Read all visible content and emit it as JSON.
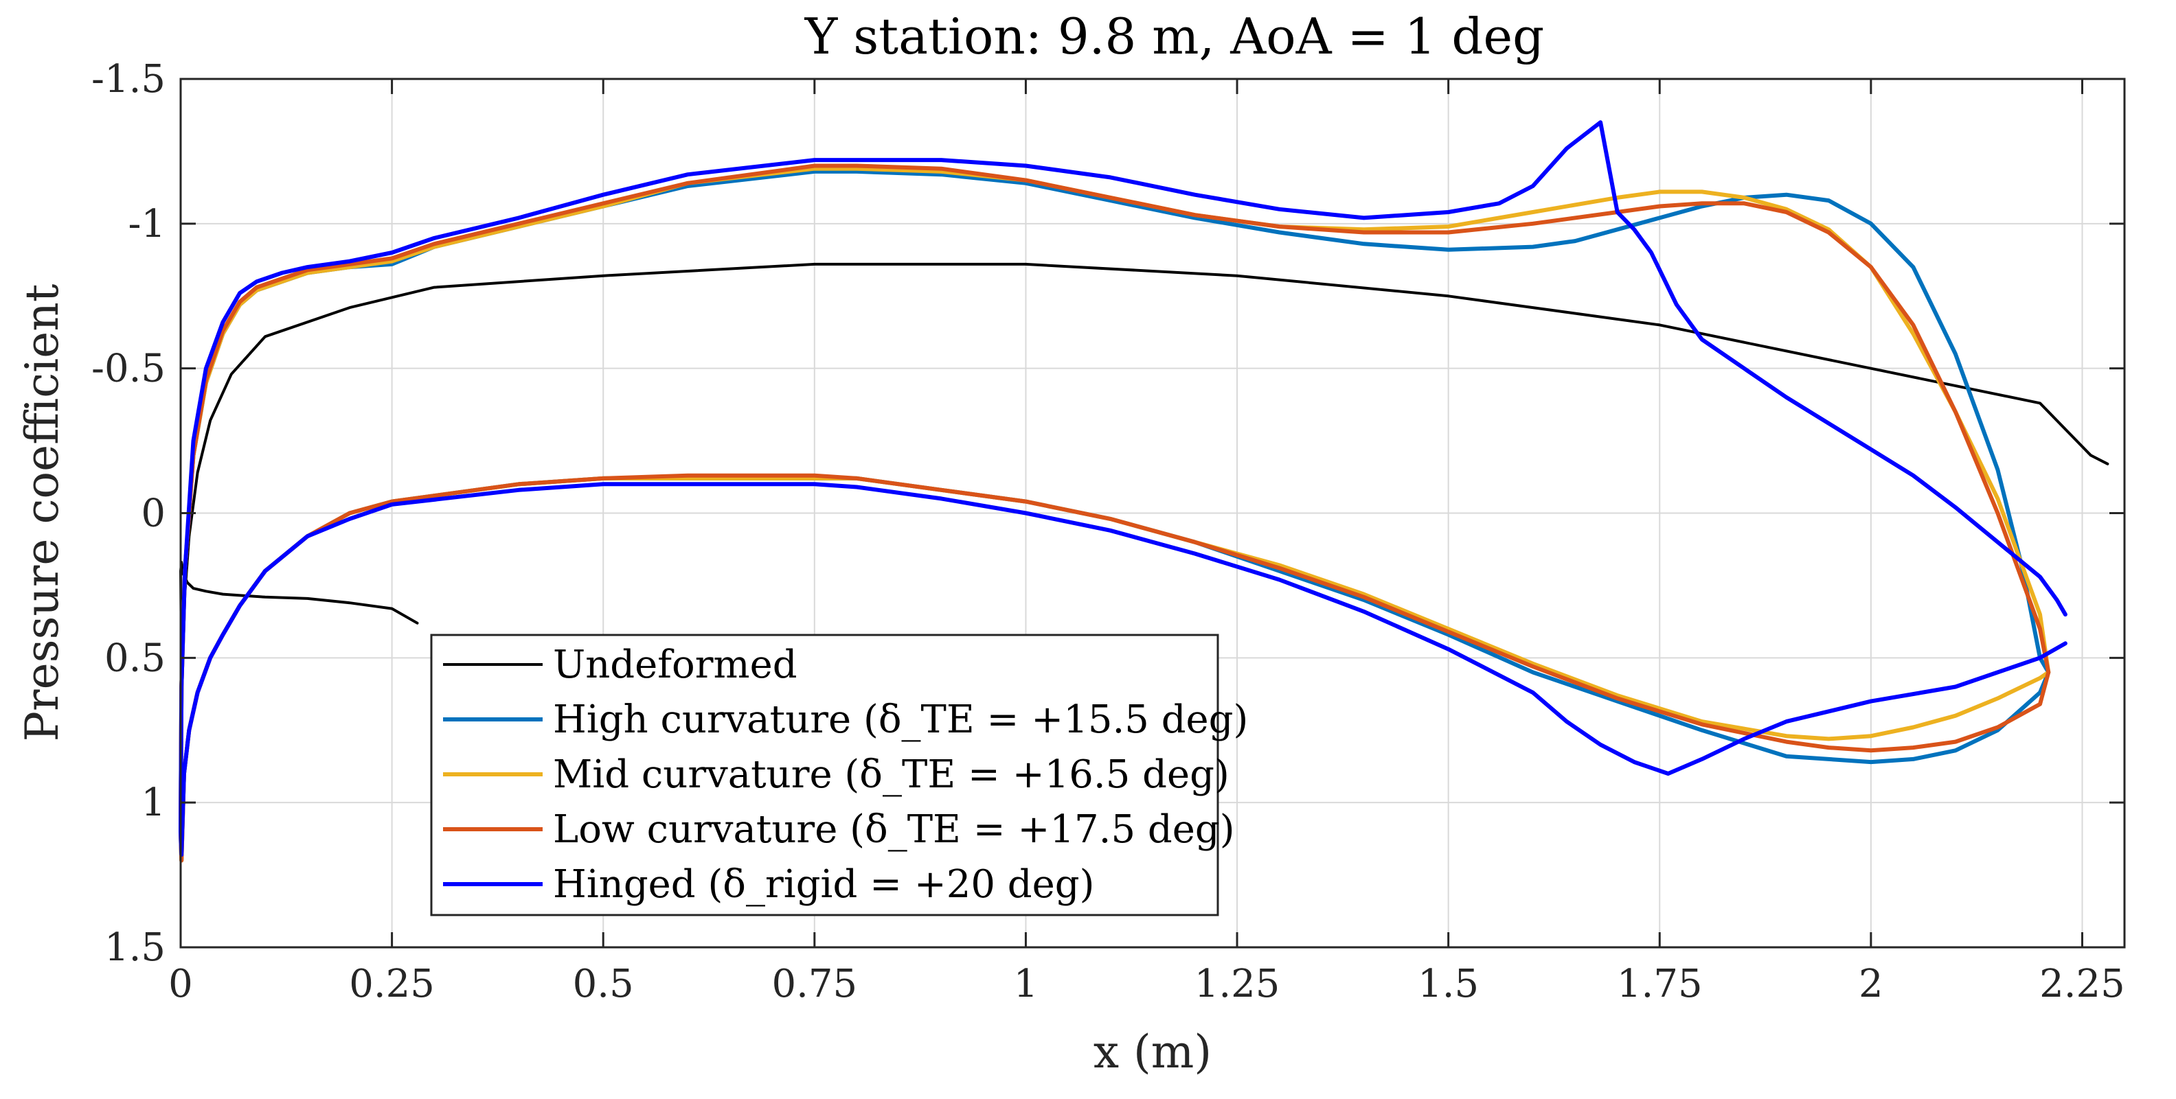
{
  "chart_data": {
    "type": "line",
    "title": "Y station: 9.8 m, AoA = 1 deg",
    "xlabel": "x (m)",
    "ylabel": "Pressure coefficient",
    "xlim": [
      0,
      2.3
    ],
    "ylim": [
      -1.5,
      1.5
    ],
    "y_reversed": true,
    "grid": true,
    "legend_position": "bottom-left",
    "x_ticks": [
      0,
      0.25,
      0.5,
      0.75,
      1,
      1.25,
      1.5,
      1.75,
      2,
      2.25
    ],
    "x_tick_labels": [
      "0",
      "0.25",
      "0.5",
      "0.75",
      "1",
      "1.25",
      "1.5",
      "1.75",
      "2",
      "2.25"
    ],
    "y_ticks": [
      -1.5,
      -1,
      -0.5,
      0,
      0.5,
      1,
      1.5
    ],
    "y_tick_labels": [
      "-1.5",
      "-1",
      "-0.5",
      "0",
      "0.5",
      "1",
      "1.5"
    ],
    "series": [
      {
        "name": "Undeformed",
        "legend_main": "Undeformed",
        "legend_math": "",
        "color": "#000000",
        "x": [
          0.28,
          0.25,
          0.2,
          0.15,
          0.1,
          0.075,
          0.05,
          0.03,
          0.015,
          0.008,
          0.003,
          0.001,
          0.0,
          0.001,
          0.004,
          0.01,
          0.02,
          0.035,
          0.06,
          0.1,
          0.2,
          0.3,
          0.5,
          0.75,
          1.0,
          1.25,
          1.5,
          1.75,
          2.0,
          2.2,
          2.26,
          2.28
        ],
        "y": [
          0.38,
          0.33,
          0.31,
          0.295,
          0.29,
          0.285,
          0.28,
          0.27,
          0.26,
          0.24,
          0.21,
          0.17,
          0.2,
          0.55,
          0.32,
          0.08,
          -0.14,
          -0.32,
          -0.48,
          -0.61,
          -0.71,
          -0.78,
          -0.82,
          -0.86,
          -0.86,
          -0.82,
          -0.75,
          -0.65,
          -0.5,
          -0.38,
          -0.2,
          -0.17
        ]
      },
      {
        "name": "High curvature",
        "legend_main": "High curvature",
        "legend_math": "(δ_TE = +15.5 deg)",
        "color": "#0072BD",
        "x": [
          2.21,
          2.2,
          2.18,
          2.15,
          2.1,
          2.05,
          2.0,
          1.95,
          1.9,
          1.85,
          1.8,
          1.75,
          1.7,
          1.65,
          1.6,
          1.5,
          1.4,
          1.3,
          1.2,
          1.1,
          1.0,
          0.9,
          0.8,
          0.75,
          0.6,
          0.5,
          0.4,
          0.3,
          0.25,
          0.2,
          0.15,
          0.12,
          0.09,
          0.07,
          0.05,
          0.03,
          0.015,
          0.005,
          0.001,
          0.0,
          0.001,
          0.004,
          0.01,
          0.02,
          0.035,
          0.05,
          0.07,
          0.1,
          0.15,
          0.2,
          0.25,
          0.4,
          0.5,
          0.6,
          0.75,
          0.8,
          0.9,
          1.0,
          1.1,
          1.2,
          1.3,
          1.4,
          1.5,
          1.6,
          1.7,
          1.8,
          1.9,
          2.0,
          2.05,
          2.1,
          2.15,
          2.2,
          2.21
        ],
        "y": [
          0.55,
          0.5,
          0.2,
          -0.15,
          -0.55,
          -0.85,
          -1.0,
          -1.08,
          -1.1,
          -1.09,
          -1.06,
          -1.02,
          -0.98,
          -0.94,
          -0.92,
          -0.91,
          -0.93,
          -0.97,
          -1.02,
          -1.08,
          -1.14,
          -1.17,
          -1.18,
          -1.18,
          -1.13,
          -1.06,
          -0.99,
          -0.92,
          -0.86,
          -0.85,
          -0.83,
          -0.8,
          -0.77,
          -0.72,
          -0.62,
          -0.45,
          -0.2,
          0.2,
          0.6,
          1.1,
          1.2,
          0.9,
          0.75,
          0.62,
          0.5,
          0.42,
          0.32,
          0.2,
          0.08,
          0.0,
          -0.04,
          -0.1,
          -0.12,
          -0.12,
          -0.12,
          -0.12,
          -0.08,
          -0.04,
          0.02,
          0.1,
          0.2,
          0.3,
          0.42,
          0.55,
          0.65,
          0.75,
          0.84,
          0.86,
          0.85,
          0.82,
          0.75,
          0.62,
          0.55
        ]
      },
      {
        "name": "Mid curvature",
        "legend_main": "Mid curvature",
        "legend_math": "(δ_TE = +16.5 deg)",
        "color": "#EDB120",
        "x": [
          2.21,
          2.2,
          2.15,
          2.1,
          2.05,
          2.0,
          1.95,
          1.9,
          1.85,
          1.8,
          1.75,
          1.7,
          1.6,
          1.5,
          1.4,
          1.3,
          1.2,
          1.1,
          1.0,
          0.9,
          0.8,
          0.75,
          0.6,
          0.5,
          0.4,
          0.3,
          0.25,
          0.2,
          0.15,
          0.12,
          0.09,
          0.07,
          0.05,
          0.03,
          0.015,
          0.005,
          0.001,
          0.0,
          0.001,
          0.004,
          0.01,
          0.02,
          0.035,
          0.05,
          0.07,
          0.1,
          0.15,
          0.2,
          0.25,
          0.4,
          0.5,
          0.6,
          0.75,
          0.8,
          0.9,
          1.0,
          1.1,
          1.2,
          1.3,
          1.4,
          1.5,
          1.6,
          1.7,
          1.8,
          1.9,
          1.95,
          2.0,
          2.05,
          2.1,
          2.15,
          2.2,
          2.21
        ],
        "y": [
          0.55,
          0.35,
          -0.05,
          -0.35,
          -0.62,
          -0.85,
          -0.98,
          -1.05,
          -1.09,
          -1.11,
          -1.11,
          -1.09,
          -1.04,
          -0.99,
          -0.98,
          -0.99,
          -1.03,
          -1.09,
          -1.15,
          -1.18,
          -1.19,
          -1.19,
          -1.14,
          -1.06,
          -0.99,
          -0.92,
          -0.87,
          -0.85,
          -0.83,
          -0.8,
          -0.77,
          -0.72,
          -0.62,
          -0.45,
          -0.2,
          0.2,
          0.6,
          1.1,
          1.2,
          0.9,
          0.75,
          0.62,
          0.5,
          0.42,
          0.32,
          0.2,
          0.08,
          0.0,
          -0.04,
          -0.1,
          -0.12,
          -0.12,
          -0.12,
          -0.12,
          -0.08,
          -0.04,
          0.02,
          0.1,
          0.18,
          0.28,
          0.4,
          0.52,
          0.63,
          0.72,
          0.77,
          0.78,
          0.77,
          0.74,
          0.7,
          0.64,
          0.57,
          0.55
        ]
      },
      {
        "name": "Low curvature",
        "legend_main": "Low curvature",
        "legend_math": "(δ_TE = +17.5 deg)",
        "color": "#D95319",
        "x": [
          2.21,
          2.2,
          2.15,
          2.1,
          2.05,
          2.0,
          1.95,
          1.9,
          1.85,
          1.8,
          1.75,
          1.7,
          1.6,
          1.5,
          1.4,
          1.3,
          1.2,
          1.1,
          1.0,
          0.9,
          0.8,
          0.75,
          0.6,
          0.5,
          0.4,
          0.3,
          0.25,
          0.2,
          0.15,
          0.12,
          0.09,
          0.07,
          0.05,
          0.03,
          0.015,
          0.005,
          0.001,
          0.0,
          0.001,
          0.004,
          0.01,
          0.02,
          0.035,
          0.05,
          0.07,
          0.1,
          0.15,
          0.2,
          0.25,
          0.4,
          0.5,
          0.6,
          0.75,
          0.8,
          0.9,
          1.0,
          1.1,
          1.2,
          1.3,
          1.4,
          1.5,
          1.6,
          1.7,
          1.8,
          1.9,
          1.95,
          2.0,
          2.05,
          2.1,
          2.15,
          2.2,
          2.21
        ],
        "y": [
          0.55,
          0.4,
          0.0,
          -0.35,
          -0.65,
          -0.85,
          -0.97,
          -1.04,
          -1.07,
          -1.07,
          -1.06,
          -1.04,
          -1.0,
          -0.97,
          -0.97,
          -0.99,
          -1.03,
          -1.09,
          -1.15,
          -1.19,
          -1.2,
          -1.2,
          -1.14,
          -1.07,
          -1.0,
          -0.93,
          -0.88,
          -0.86,
          -0.84,
          -0.81,
          -0.78,
          -0.73,
          -0.63,
          -0.46,
          -0.2,
          0.2,
          0.6,
          1.1,
          1.2,
          0.9,
          0.75,
          0.62,
          0.5,
          0.42,
          0.32,
          0.2,
          0.08,
          0.0,
          -0.04,
          -0.1,
          -0.12,
          -0.13,
          -0.13,
          -0.12,
          -0.08,
          -0.04,
          0.02,
          0.1,
          0.19,
          0.29,
          0.41,
          0.53,
          0.64,
          0.73,
          0.79,
          0.81,
          0.82,
          0.81,
          0.79,
          0.74,
          0.66,
          0.55
        ]
      },
      {
        "name": "Hinged",
        "legend_main": "Hinged",
        "legend_math": "(δ_rigid = +20 deg)",
        "color": "#0000FF",
        "x": [
          2.23,
          2.22,
          2.2,
          2.15,
          2.1,
          2.05,
          2.0,
          1.9,
          1.85,
          1.8,
          1.77,
          1.74,
          1.72,
          1.7,
          1.68,
          1.64,
          1.6,
          1.56,
          1.5,
          1.4,
          1.3,
          1.2,
          1.1,
          1.0,
          0.9,
          0.8,
          0.75,
          0.6,
          0.5,
          0.4,
          0.3,
          0.25,
          0.2,
          0.15,
          0.12,
          0.09,
          0.07,
          0.05,
          0.03,
          0.015,
          0.005,
          0.001,
          0.0,
          0.001,
          0.004,
          0.01,
          0.02,
          0.035,
          0.05,
          0.07,
          0.1,
          0.15,
          0.2,
          0.25,
          0.4,
          0.5,
          0.6,
          0.75,
          0.8,
          0.9,
          1.0,
          1.1,
          1.2,
          1.3,
          1.4,
          1.5,
          1.6,
          1.64,
          1.68,
          1.72,
          1.76,
          1.8,
          1.85,
          1.9,
          2.0,
          2.1,
          2.15,
          2.2,
          2.23
        ],
        "y": [
          0.35,
          0.3,
          0.22,
          0.1,
          -0.02,
          -0.13,
          -0.22,
          -0.4,
          -0.5,
          -0.6,
          -0.72,
          -0.9,
          -0.98,
          -1.04,
          -1.35,
          -1.26,
          -1.13,
          -1.07,
          -1.04,
          -1.02,
          -1.05,
          -1.1,
          -1.16,
          -1.2,
          -1.22,
          -1.22,
          -1.22,
          -1.17,
          -1.1,
          -1.02,
          -0.95,
          -0.9,
          -0.87,
          -0.85,
          -0.83,
          -0.8,
          -0.76,
          -0.66,
          -0.5,
          -0.25,
          0.2,
          0.6,
          1.1,
          1.18,
          0.9,
          0.75,
          0.62,
          0.5,
          0.42,
          0.32,
          0.2,
          0.08,
          0.02,
          -0.03,
          -0.08,
          -0.1,
          -0.1,
          -0.1,
          -0.09,
          -0.05,
          0.0,
          0.06,
          0.14,
          0.23,
          0.34,
          0.47,
          0.62,
          0.72,
          0.8,
          0.86,
          0.9,
          0.85,
          0.78,
          0.72,
          0.65,
          0.6,
          0.55,
          0.5,
          0.45
        ]
      }
    ]
  }
}
